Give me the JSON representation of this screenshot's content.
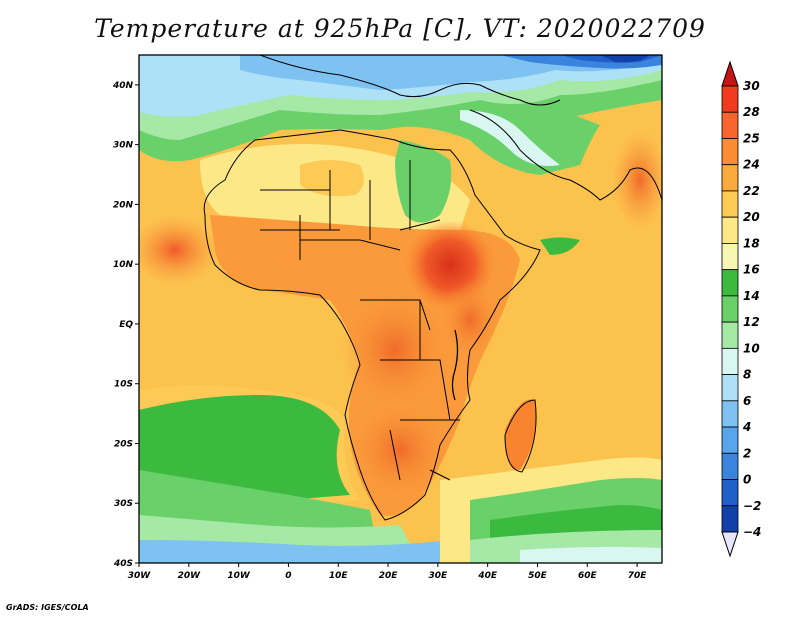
{
  "title": "Temperature at 925hPa [C], VT: 2020022709",
  "credit": "GrADS: IGES/COLA",
  "map": {
    "projection": "lat-lon",
    "lon_range": [
      -30,
      75
    ],
    "lat_range": [
      -40,
      45
    ],
    "lat_ticks": [
      {
        "value": 40,
        "label": "40N"
      },
      {
        "value": 30,
        "label": "30N"
      },
      {
        "value": 20,
        "label": "20N"
      },
      {
        "value": 10,
        "label": "10N"
      },
      {
        "value": 0,
        "label": "EQ"
      },
      {
        "value": -10,
        "label": "10S"
      },
      {
        "value": -20,
        "label": "20S"
      },
      {
        "value": -30,
        "label": "30S"
      },
      {
        "value": -40,
        "label": "40S"
      }
    ],
    "lon_ticks": [
      {
        "value": -30,
        "label": "30W"
      },
      {
        "value": -20,
        "label": "20W"
      },
      {
        "value": -10,
        "label": "10W"
      },
      {
        "value": 0,
        "label": "0"
      },
      {
        "value": 10,
        "label": "10E"
      },
      {
        "value": 20,
        "label": "20E"
      },
      {
        "value": 30,
        "label": "30E"
      },
      {
        "value": 40,
        "label": "40E"
      },
      {
        "value": 50,
        "label": "50E"
      },
      {
        "value": 60,
        "label": "60E"
      },
      {
        "value": 70,
        "label": "70E"
      }
    ]
  },
  "colorbar": {
    "levels": [
      30,
      28,
      25,
      24,
      22,
      20,
      18,
      16,
      14,
      12,
      10,
      8,
      6,
      4,
      2,
      0,
      -2,
      -4
    ],
    "labels": [
      "30",
      "28",
      "25",
      "24",
      "22",
      "20",
      "18",
      "16",
      "14",
      "12",
      "10",
      "8",
      "6",
      "4",
      "2",
      "0",
      "−2",
      "−4"
    ],
    "colors": [
      "#f03c1e",
      "#f8642d",
      "#fa8c32",
      "#fbab3c",
      "#fcca55",
      "#fde888",
      "#f7f6b2",
      "#3cba40",
      "#6ad06a",
      "#a6e8a6",
      "#d9f7f0",
      "#aee0f7",
      "#7ec2f2",
      "#58a5eb",
      "#3a84de",
      "#2060c8",
      "#1040a8",
      "#082078",
      "#e6e6ff"
    ],
    "top_color": "#c81414",
    "bottom_color": "#e6e6ff"
  }
}
